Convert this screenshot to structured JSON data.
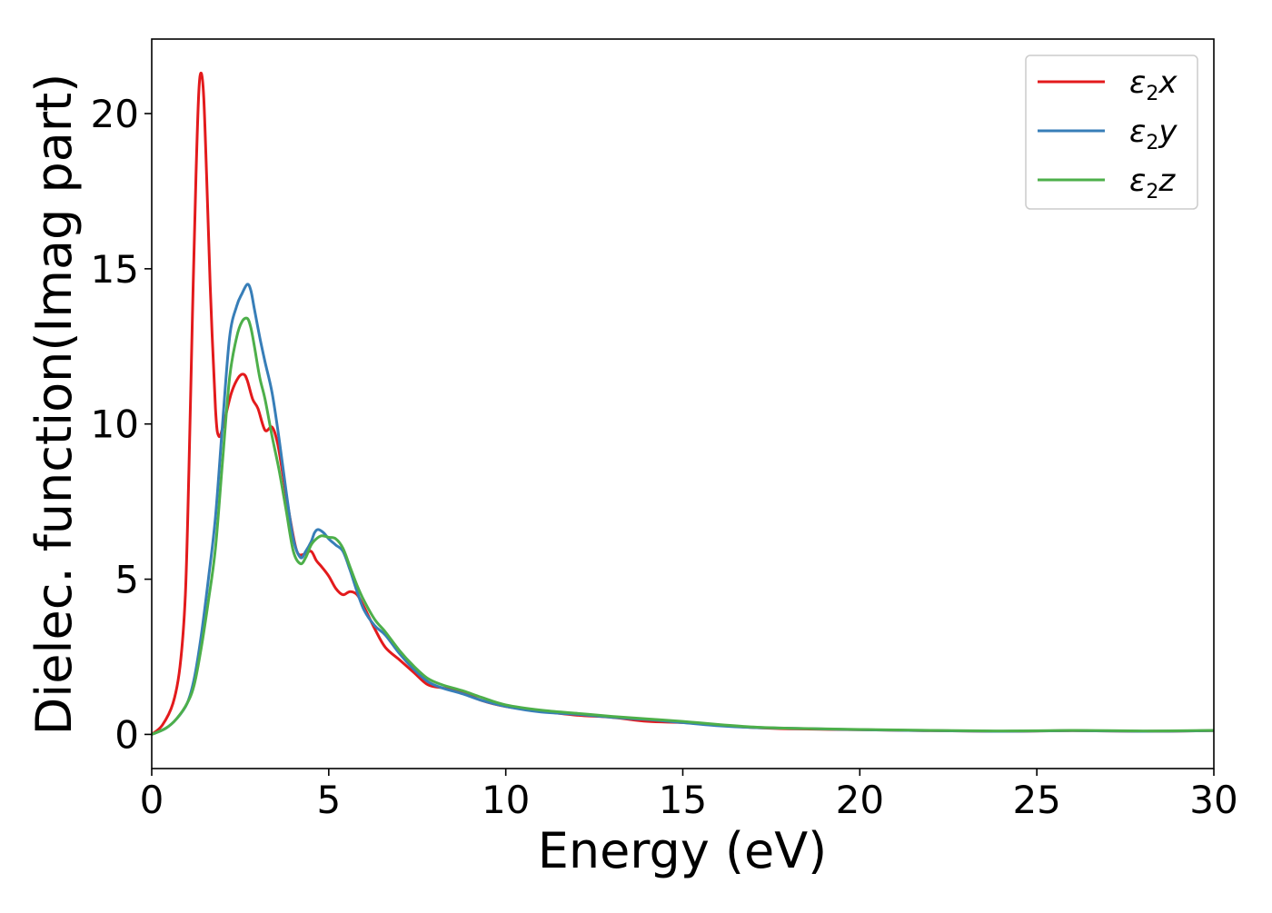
{
  "chart_data": {
    "type": "line",
    "title": "",
    "xlabel": "Energy (eV)",
    "ylabel": "Dielec. function(Imag part)",
    "xlim": [
      0,
      30
    ],
    "ylim": [
      -1.1,
      22.4
    ],
    "xticks": [
      0,
      5,
      10,
      15,
      20,
      25,
      30
    ],
    "yticks": [
      0,
      5,
      10,
      15,
      20
    ],
    "xtick_labels": [
      "0",
      "5",
      "10",
      "15",
      "20",
      "25",
      "30"
    ],
    "ytick_labels": [
      "0",
      "5",
      "10",
      "15",
      "20"
    ],
    "grid": false,
    "legend_position": "top-right",
    "series": [
      {
        "name": "ε2x",
        "label_main": "ε",
        "label_sub": "2",
        "label_tail": "x",
        "color": "#e31a1c",
        "x": [
          0,
          0.3,
          0.6,
          0.8,
          0.95,
          1.05,
          1.15,
          1.25,
          1.33,
          1.4,
          1.47,
          1.55,
          1.65,
          1.8,
          1.9,
          2.05,
          2.25,
          2.45,
          2.6,
          2.7,
          2.85,
          3.0,
          3.2,
          3.4,
          3.55,
          3.7,
          3.9,
          4.1,
          4.3,
          4.5,
          4.65,
          4.8,
          5.0,
          5.2,
          5.4,
          5.6,
          5.8,
          6.0,
          6.3,
          6.6,
          7.0,
          7.4,
          7.8,
          8.2,
          8.8,
          9.3,
          10.0,
          11.0,
          12.0,
          13.0,
          14.0,
          15.0,
          16.0,
          17.0,
          18.0,
          20.0,
          22.0,
          24.0,
          26.0,
          28.0,
          30.0
        ],
        "y": [
          0.0,
          0.3,
          1.0,
          2.2,
          4.5,
          8.5,
          13.5,
          18.0,
          20.7,
          21.3,
          20.5,
          18.0,
          14.5,
          10.5,
          9.6,
          10.1,
          11.0,
          11.5,
          11.6,
          11.4,
          10.8,
          10.5,
          9.8,
          9.9,
          9.4,
          8.4,
          7.0,
          5.9,
          5.8,
          5.9,
          5.6,
          5.4,
          5.1,
          4.7,
          4.5,
          4.6,
          4.5,
          4.1,
          3.4,
          2.8,
          2.4,
          2.0,
          1.6,
          1.5,
          1.35,
          1.1,
          0.9,
          0.75,
          0.62,
          0.55,
          0.42,
          0.38,
          0.3,
          0.22,
          0.18,
          0.15,
          0.12,
          0.1,
          0.12,
          0.1,
          0.12
        ]
      },
      {
        "name": "ε2y",
        "label_main": "ε",
        "label_sub": "2",
        "label_tail": "y",
        "color": "#377eb8",
        "x": [
          0,
          0.4,
          0.7,
          1.0,
          1.2,
          1.4,
          1.6,
          1.8,
          2.0,
          2.2,
          2.4,
          2.55,
          2.7,
          2.8,
          2.9,
          3.05,
          3.2,
          3.4,
          3.6,
          3.8,
          4.0,
          4.2,
          4.35,
          4.5,
          4.6,
          4.7,
          4.85,
          5.0,
          5.2,
          5.4,
          5.6,
          5.8,
          6.0,
          6.3,
          6.6,
          7.0,
          7.4,
          7.8,
          8.2,
          8.8,
          9.3,
          10.0,
          11.0,
          12.0,
          13.0,
          14.0,
          15.0,
          16.0,
          17.0,
          18.0,
          20.0,
          22.0,
          24.0,
          26.0,
          28.0,
          30.0
        ],
        "y": [
          0.0,
          0.2,
          0.5,
          1.0,
          1.8,
          3.2,
          5.0,
          7.0,
          10.0,
          12.8,
          13.8,
          14.2,
          14.5,
          14.3,
          13.7,
          12.8,
          12.0,
          11.0,
          9.5,
          7.8,
          6.3,
          5.7,
          5.9,
          6.2,
          6.5,
          6.6,
          6.5,
          6.3,
          6.1,
          5.9,
          5.3,
          4.6,
          4.0,
          3.5,
          3.2,
          2.6,
          2.1,
          1.7,
          1.5,
          1.3,
          1.1,
          0.9,
          0.72,
          0.65,
          0.55,
          0.48,
          0.38,
          0.28,
          0.22,
          0.2,
          0.15,
          0.12,
          0.1,
          0.12,
          0.1,
          0.12
        ]
      },
      {
        "name": "ε2z",
        "label_main": "ε",
        "label_sub": "2",
        "label_tail": "z",
        "color": "#4daf4a",
        "x": [
          0,
          0.4,
          0.7,
          1.0,
          1.2,
          1.4,
          1.6,
          1.8,
          2.0,
          2.2,
          2.4,
          2.55,
          2.7,
          2.8,
          2.9,
          3.05,
          3.2,
          3.4,
          3.6,
          3.8,
          4.0,
          4.2,
          4.35,
          4.5,
          4.65,
          4.8,
          5.0,
          5.2,
          5.4,
          5.6,
          5.8,
          6.0,
          6.3,
          6.6,
          7.0,
          7.4,
          7.8,
          8.2,
          8.8,
          9.3,
          10.0,
          11.0,
          12.0,
          13.0,
          14.0,
          15.0,
          16.0,
          17.0,
          18.0,
          20.0,
          22.0,
          24.0,
          26.0,
          28.0,
          30.0
        ],
        "y": [
          0.0,
          0.2,
          0.5,
          1.0,
          1.6,
          2.8,
          4.3,
          6.0,
          8.8,
          11.5,
          12.8,
          13.3,
          13.4,
          13.1,
          12.5,
          11.5,
          10.8,
          9.6,
          8.5,
          7.2,
          5.9,
          5.5,
          5.7,
          6.1,
          6.3,
          6.4,
          6.35,
          6.3,
          6.0,
          5.4,
          4.8,
          4.3,
          3.7,
          3.3,
          2.7,
          2.2,
          1.8,
          1.6,
          1.4,
          1.2,
          0.95,
          0.78,
          0.68,
          0.58,
          0.5,
          0.42,
          0.32,
          0.24,
          0.2,
          0.16,
          0.13,
          0.11,
          0.13,
          0.11,
          0.13
        ]
      }
    ]
  }
}
